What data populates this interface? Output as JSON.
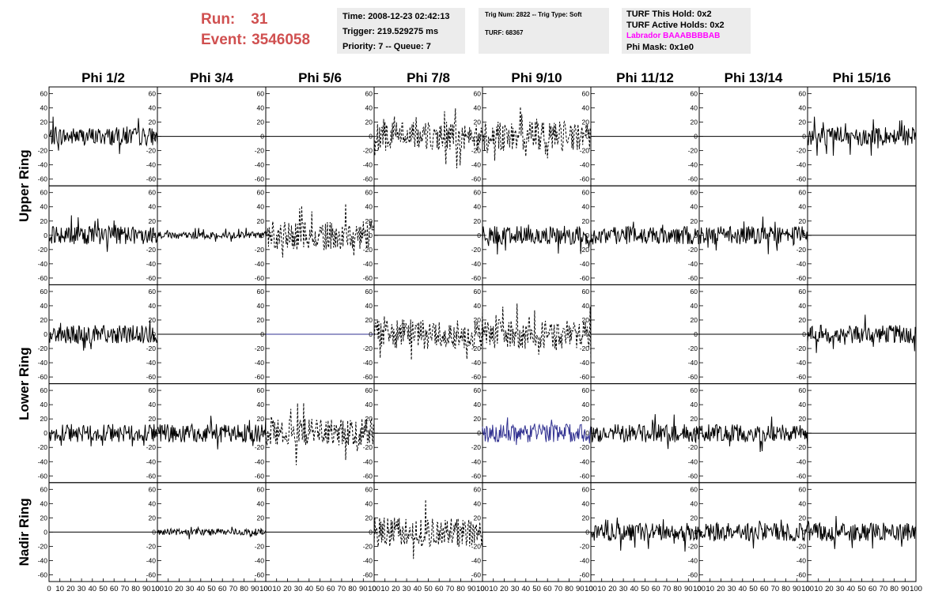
{
  "run": {
    "run_label": "Run:",
    "run_value": "31",
    "event_label": "Event:",
    "event_value": "3546058"
  },
  "time_box": {
    "time": "Time: 2008-12-23 02:42:13",
    "trigger": "Trigger: 219.529275 ms",
    "priority": "Priority: 7 -- Queue: 7"
  },
  "trig_box": {
    "line1": "Trig Num: 2822 -- Trig Type: Soft",
    "line2": "TURF: 68367"
  },
  "turf_box": {
    "hold": "TURF This Hold: 0x2",
    "active": "TURF Active Holds: 0x2",
    "labrador": "Labrador BAAABBBBAB",
    "labrador_color": "#ff00ff",
    "phimask": "Phi Mask: 0x1e0"
  },
  "colors": {
    "run_text": "#d05050",
    "box_bg": "#ececec",
    "trace": "#000000",
    "trace_blue": "#303090"
  },
  "chart_data": {
    "type": "line",
    "columns": [
      "Phi 1/2",
      "Phi 3/4",
      "Phi 5/6",
      "Phi 7/8",
      "Phi 9/10",
      "Phi 11/12",
      "Phi 13/14",
      "Phi 15/16"
    ],
    "rows": [
      {
        "label": "Upper Ring",
        "label_span": [
          0,
          1
        ]
      },
      {
        "label": "Lower Ring",
        "label_span": [
          2,
          3
        ]
      },
      {
        "label": "Nadir Ring",
        "label_span": [
          4,
          4
        ]
      }
    ],
    "xlim": [
      0,
      100
    ],
    "ylim": [
      -65,
      65
    ],
    "y_ticks": [
      60,
      40,
      20,
      0,
      -20,
      -40,
      -60
    ],
    "y_tick_labels": [
      "60",
      "40",
      "20",
      "0",
      "-20",
      "-40",
      "-60"
    ],
    "x_tick_labels": [
      "0",
      "10",
      "20",
      "30",
      "40",
      "50",
      "60",
      "70",
      "80",
      "90",
      "100"
    ],
    "panels": [
      [
        "solid",
        "flat",
        "flat",
        "dotted",
        "dotted",
        "flat",
        "flat",
        "solid"
      ],
      [
        "solid",
        "small",
        "dotted",
        "flat",
        "solid",
        "solid",
        "solid",
        "flat"
      ],
      [
        "solid",
        "flat",
        "blue-flat",
        "dotted",
        "dotted",
        "flat",
        "flat",
        "solid"
      ],
      [
        "solid",
        "solid",
        "dotted",
        "flat",
        "blue",
        "solid",
        "solid",
        "flat"
      ],
      [
        "flat",
        "small",
        "flat",
        "dotted",
        "flat",
        "solid",
        "solid",
        "solid"
      ]
    ]
  }
}
